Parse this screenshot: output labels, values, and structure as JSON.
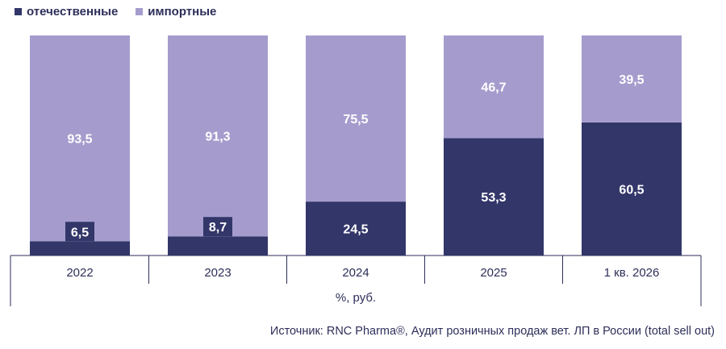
{
  "legend": [
    {
      "label": "отечественные",
      "color": "#323669"
    },
    {
      "label": "импортные",
      "color": "#a59ccd"
    }
  ],
  "chart_data": {
    "type": "bar",
    "stacked": true,
    "categories": [
      "2022",
      "2023",
      "2024",
      "2025",
      "1 кв. 2026"
    ],
    "series": [
      {
        "name": "отечественные",
        "color": "#323669",
        "values": [
          6.5,
          8.7,
          24.5,
          53.3,
          60.5
        ],
        "labels": [
          "6,5",
          "8,7",
          "24,5",
          "53,3",
          "60,5"
        ]
      },
      {
        "name": "импортные",
        "color": "#a59ccd",
        "values": [
          93.5,
          91.3,
          75.5,
          46.7,
          39.5
        ],
        "labels": [
          "93,5",
          "91,3",
          "75,5",
          "46,7",
          "39,5"
        ]
      }
    ],
    "ylim": [
      0,
      100
    ],
    "xlabel": "%, руб.",
    "grid": false
  },
  "source": "Источник: RNC Pharma®, Аудит розничных продаж вет. ЛП в России (total sell out)"
}
